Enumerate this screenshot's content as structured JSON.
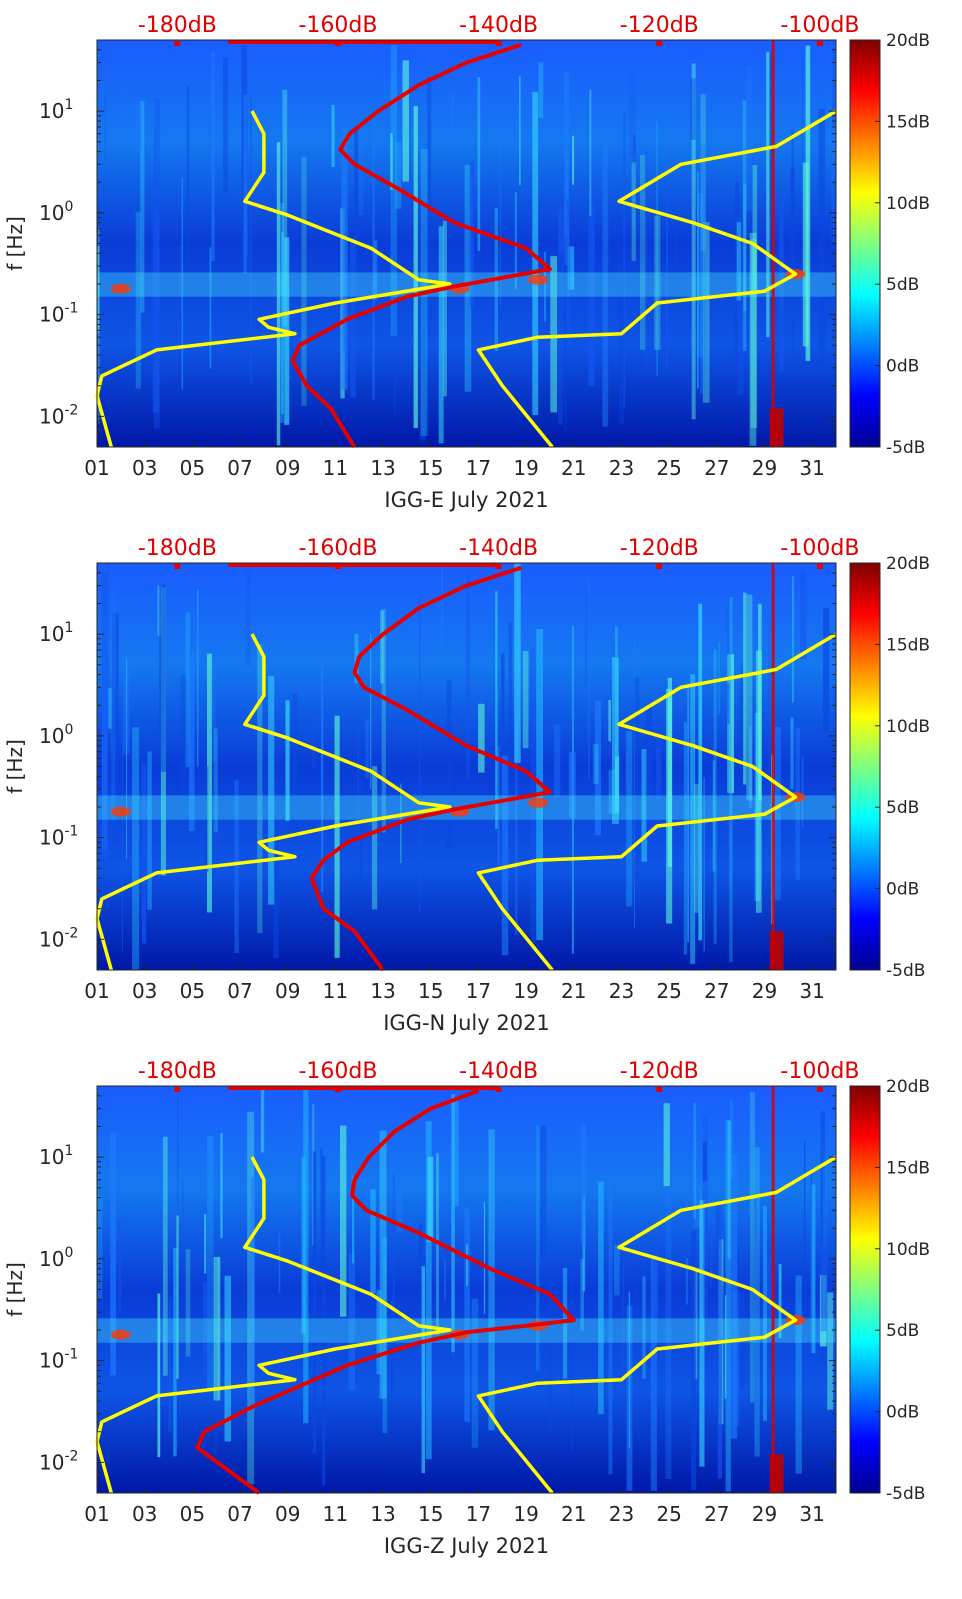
{
  "chart_data": [
    {
      "type": "heatmap",
      "title": "",
      "xlabel": "IGG-E July 2021",
      "ylabel": "f [Hz]",
      "x_ticks": [
        "01",
        "03",
        "05",
        "07",
        "09",
        "11",
        "13",
        "15",
        "17",
        "19",
        "21",
        "23",
        "25",
        "27",
        "29",
        "31"
      ],
      "xlim": [
        1,
        32
      ],
      "ylim": [
        0.005,
        50
      ],
      "y_scale": "log",
      "y_ticks": [
        {
          "value": 0.01,
          "base": "10",
          "exp": "-2"
        },
        {
          "value": 0.1,
          "base": "10",
          "exp": "-1"
        },
        {
          "value": 1,
          "base": "10",
          "exp": "0"
        },
        {
          "value": 10,
          "base": "10",
          "exp": "1"
        }
      ],
      "top_axis_ticks": [
        "-180dB",
        "-160dB",
        "-140dB",
        "-120dB",
        "-100dB"
      ],
      "top_axis_range": [
        -190,
        -98
      ],
      "colorbar": {
        "ticks": [
          "20dB",
          "15dB",
          "10dB",
          "5dB",
          "0dB",
          "-5dB"
        ],
        "range": [
          -5,
          20
        ]
      },
      "series": [
        {
          "name": "noise model (yellow)",
          "color": "#ffff00",
          "points": [
            [
              7.5,
              10
            ],
            [
              8.0,
              6
            ],
            [
              8.0,
              2.5
            ],
            [
              7.2,
              1.3
            ],
            [
              9.0,
              0.95
            ],
            [
              12.5,
              0.45
            ],
            [
              14.5,
              0.22
            ],
            [
              15.8,
              0.2
            ],
            [
              11.0,
              0.13
            ],
            [
              7.8,
              0.09
            ],
            [
              8.2,
              0.075
            ],
            [
              9.3,
              0.065
            ],
            [
              3.5,
              0.045
            ],
            [
              1.2,
              0.025
            ],
            [
              1.0,
              0.016
            ],
            [
              1.6,
              0.005
            ]
          ]
        },
        {
          "name": "spectral level (red)",
          "color": "#e60000",
          "points": [
            [
              18.8,
              45
            ],
            [
              16.5,
              30
            ],
            [
              14.5,
              18
            ],
            [
              12.8,
              10
            ],
            [
              11.6,
              6
            ],
            [
              11.2,
              4.2
            ],
            [
              11.8,
              3
            ],
            [
              13.5,
              1.8
            ],
            [
              16.0,
              0.8
            ],
            [
              19.0,
              0.45
            ],
            [
              20.0,
              0.28
            ],
            [
              18.0,
              0.23
            ],
            [
              16.0,
              0.19
            ],
            [
              14.0,
              0.15
            ],
            [
              11.5,
              0.09
            ],
            [
              9.5,
              0.05
            ],
            [
              9.2,
              0.035
            ],
            [
              9.8,
              0.02
            ],
            [
              10.8,
              0.012
            ],
            [
              11.8,
              0.005
            ]
          ]
        },
        {
          "name": "noise model (yellow, right)",
          "color": "#ffff00",
          "points": [
            [
              32.0,
              10
            ],
            [
              29.5,
              4.5
            ],
            [
              25.5,
              3
            ],
            [
              22.9,
              1.3
            ],
            [
              26.0,
              0.8
            ],
            [
              28.5,
              0.5
            ],
            [
              30.3,
              0.25
            ],
            [
              29.0,
              0.17
            ],
            [
              24.5,
              0.13
            ],
            [
              23.0,
              0.065
            ],
            [
              19.5,
              0.06
            ],
            [
              17.0,
              0.045
            ],
            [
              18.0,
              0.02
            ],
            [
              20.1,
              0.005
            ]
          ]
        }
      ]
    },
    {
      "type": "heatmap",
      "title": "",
      "xlabel": "IGG-N July 2021",
      "ylabel": "f [Hz]",
      "x_ticks": [
        "01",
        "03",
        "05",
        "07",
        "09",
        "11",
        "13",
        "15",
        "17",
        "19",
        "21",
        "23",
        "25",
        "27",
        "29",
        "31"
      ],
      "xlim": [
        1,
        32
      ],
      "ylim": [
        0.005,
        50
      ],
      "y_scale": "log",
      "y_ticks": [
        {
          "value": 0.01,
          "base": "10",
          "exp": "-2"
        },
        {
          "value": 0.1,
          "base": "10",
          "exp": "-1"
        },
        {
          "value": 1,
          "base": "10",
          "exp": "0"
        },
        {
          "value": 10,
          "base": "10",
          "exp": "1"
        }
      ],
      "top_axis_ticks": [
        "-180dB",
        "-160dB",
        "-140dB",
        "-120dB",
        "-100dB"
      ],
      "top_axis_range": [
        -190,
        -98
      ],
      "colorbar": {
        "ticks": [
          "20dB",
          "15dB",
          "10dB",
          "5dB",
          "0dB",
          "-5dB"
        ],
        "range": [
          -5,
          20
        ]
      },
      "series": [
        {
          "name": "noise model (yellow)",
          "color": "#ffff00",
          "points": [
            [
              7.5,
              10
            ],
            [
              8.0,
              6
            ],
            [
              8.0,
              2.5
            ],
            [
              7.2,
              1.3
            ],
            [
              9.0,
              0.95
            ],
            [
              12.5,
              0.45
            ],
            [
              14.5,
              0.22
            ],
            [
              15.8,
              0.2
            ],
            [
              11.0,
              0.13
            ],
            [
              7.8,
              0.09
            ],
            [
              8.2,
              0.075
            ],
            [
              9.3,
              0.065
            ],
            [
              3.5,
              0.045
            ],
            [
              1.2,
              0.025
            ],
            [
              1.0,
              0.016
            ],
            [
              1.6,
              0.005
            ]
          ]
        },
        {
          "name": "spectral level (red)",
          "color": "#e60000",
          "points": [
            [
              18.8,
              45
            ],
            [
              16.5,
              30
            ],
            [
              14.5,
              18
            ],
            [
              13.0,
              10
            ],
            [
              12.0,
              6
            ],
            [
              11.8,
              4.2
            ],
            [
              12.2,
              3
            ],
            [
              14.0,
              1.8
            ],
            [
              16.5,
              0.8
            ],
            [
              19.0,
              0.45
            ],
            [
              20.0,
              0.28
            ],
            [
              18.0,
              0.23
            ],
            [
              16.0,
              0.19
            ],
            [
              14.0,
              0.15
            ],
            [
              11.5,
              0.09
            ],
            [
              10.5,
              0.06
            ],
            [
              10.0,
              0.04
            ],
            [
              10.5,
              0.02
            ],
            [
              11.8,
              0.012
            ],
            [
              13.0,
              0.005
            ]
          ]
        },
        {
          "name": "noise model (yellow, right)",
          "color": "#ffff00",
          "points": [
            [
              32.0,
              10
            ],
            [
              29.5,
              4.5
            ],
            [
              25.5,
              3
            ],
            [
              22.9,
              1.3
            ],
            [
              26.0,
              0.8
            ],
            [
              28.5,
              0.5
            ],
            [
              30.3,
              0.25
            ],
            [
              29.0,
              0.17
            ],
            [
              24.5,
              0.13
            ],
            [
              23.0,
              0.065
            ],
            [
              19.5,
              0.06
            ],
            [
              17.0,
              0.045
            ],
            [
              18.0,
              0.02
            ],
            [
              20.1,
              0.005
            ]
          ]
        }
      ]
    },
    {
      "type": "heatmap",
      "title": "",
      "xlabel": "IGG-Z July 2021",
      "ylabel": "f [Hz]",
      "x_ticks": [
        "01",
        "03",
        "05",
        "07",
        "09",
        "11",
        "13",
        "15",
        "17",
        "19",
        "21",
        "23",
        "25",
        "27",
        "29",
        "31"
      ],
      "xlim": [
        1,
        32
      ],
      "ylim": [
        0.005,
        50
      ],
      "y_scale": "log",
      "y_ticks": [
        {
          "value": 0.01,
          "base": "10",
          "exp": "-2"
        },
        {
          "value": 0.1,
          "base": "10",
          "exp": "-1"
        },
        {
          "value": 1,
          "base": "10",
          "exp": "0"
        },
        {
          "value": 10,
          "base": "10",
          "exp": "1"
        }
      ],
      "top_axis_ticks": [
        "-180dB",
        "-160dB",
        "-140dB",
        "-120dB",
        "-100dB"
      ],
      "top_axis_range": [
        -190,
        -98
      ],
      "colorbar": {
        "ticks": [
          "20dB",
          "15dB",
          "10dB",
          "5dB",
          "0dB",
          "-5dB"
        ],
        "range": [
          -5,
          20
        ]
      },
      "series": [
        {
          "name": "noise model (yellow)",
          "color": "#ffff00",
          "points": [
            [
              7.5,
              10
            ],
            [
              8.0,
              6
            ],
            [
              8.0,
              2.5
            ],
            [
              7.2,
              1.3
            ],
            [
              9.0,
              0.95
            ],
            [
              12.5,
              0.45
            ],
            [
              14.5,
              0.22
            ],
            [
              15.8,
              0.2
            ],
            [
              11.0,
              0.13
            ],
            [
              7.8,
              0.09
            ],
            [
              8.2,
              0.075
            ],
            [
              9.3,
              0.065
            ],
            [
              3.5,
              0.045
            ],
            [
              1.2,
              0.025
            ],
            [
              1.0,
              0.016
            ],
            [
              1.6,
              0.005
            ]
          ]
        },
        {
          "name": "spectral level (red)",
          "color": "#e60000",
          "points": [
            [
              17.0,
              45
            ],
            [
              15.0,
              30
            ],
            [
              13.5,
              18
            ],
            [
              12.4,
              10
            ],
            [
              11.8,
              6
            ],
            [
              11.7,
              4.2
            ],
            [
              12.3,
              3
            ],
            [
              14.5,
              1.8
            ],
            [
              17.5,
              0.8
            ],
            [
              20.0,
              0.45
            ],
            [
              21.0,
              0.25
            ],
            [
              19.0,
              0.22
            ],
            [
              16.5,
              0.19
            ],
            [
              14.5,
              0.15
            ],
            [
              11.5,
              0.09
            ],
            [
              9.0,
              0.05
            ],
            [
              7.5,
              0.035
            ],
            [
              5.5,
              0.02
            ],
            [
              5.2,
              0.014
            ],
            [
              7.8,
              0.005
            ]
          ]
        },
        {
          "name": "noise model (yellow, right)",
          "color": "#ffff00",
          "points": [
            [
              32.0,
              10
            ],
            [
              29.5,
              4.5
            ],
            [
              25.5,
              3
            ],
            [
              22.9,
              1.3
            ],
            [
              26.0,
              0.8
            ],
            [
              28.5,
              0.5
            ],
            [
              30.3,
              0.25
            ],
            [
              29.0,
              0.17
            ],
            [
              24.5,
              0.13
            ],
            [
              23.0,
              0.065
            ],
            [
              19.5,
              0.06
            ],
            [
              17.0,
              0.045
            ],
            [
              18.0,
              0.02
            ],
            [
              20.1,
              0.005
            ]
          ]
        }
      ]
    }
  ]
}
